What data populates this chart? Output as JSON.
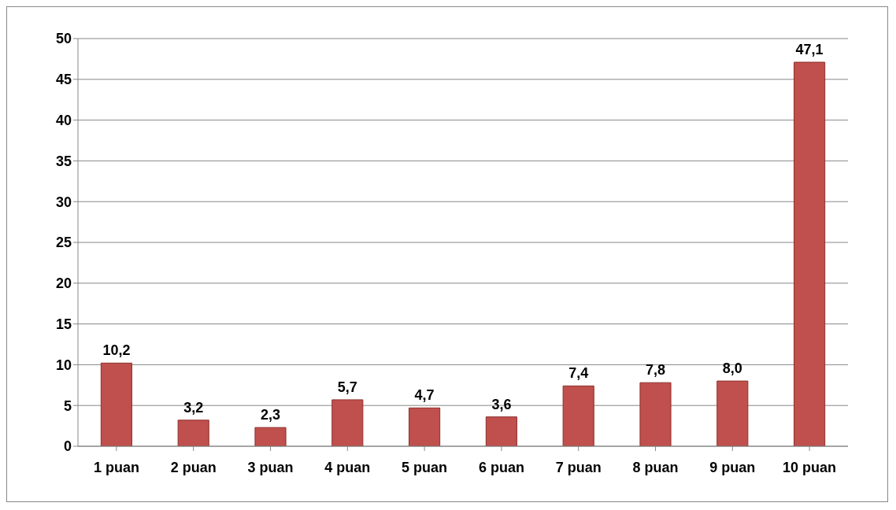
{
  "chart_data": {
    "type": "bar",
    "categories": [
      "1 puan",
      "2 puan",
      "3 puan",
      "4 puan",
      "5 puan",
      "6 puan",
      "7 puan",
      "8 puan",
      "9 puan",
      "10 puan"
    ],
    "values": [
      10.2,
      3.2,
      2.3,
      5.7,
      4.7,
      3.6,
      7.4,
      7.8,
      8.0,
      47.1
    ],
    "value_labels": [
      "10,2",
      "3,2",
      "2,3",
      "5,7",
      "4,7",
      "3,6",
      "7,4",
      "7,8",
      "8,0",
      "47,1"
    ],
    "color": "#c0504d",
    "ylim": [
      0,
      50
    ],
    "yticks": [
      0,
      5,
      10,
      15,
      20,
      25,
      30,
      35,
      40,
      45,
      50
    ],
    "grid": "y"
  }
}
